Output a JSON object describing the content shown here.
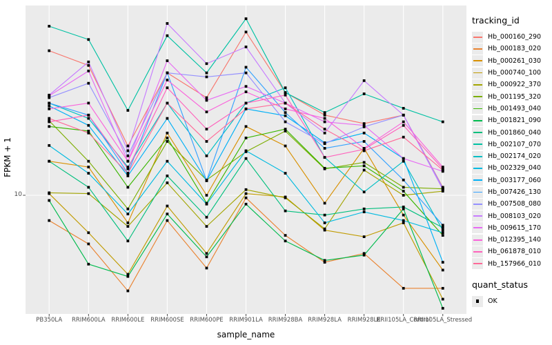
{
  "figure": {
    "background": "#FFFFFF",
    "panel_background": "#EBEBEB",
    "grid_color": "#FFFFFF",
    "axis_text_color": "#4d4d4d",
    "point_color": "#000000"
  },
  "chart_data": {
    "type": "line",
    "title": "",
    "xlabel": "sample_name",
    "ylabel": "FPKM + 1",
    "y_scale": "log10",
    "y_ticks": [
      10
    ],
    "y_tick_labels": [
      "10"
    ],
    "ylim": [
      2.3,
      95
    ],
    "grid": "major-on",
    "legend_position": "right",
    "point_shape": "filled-square",
    "categories": [
      "PB350LA",
      "RRIM600LA",
      "RRIM600LE",
      "RRIM600SE",
      "RRIM600PE",
      "RRIM901LA",
      "RRIM928BA",
      "RRIM928LA",
      "RRIM928LE",
      "RRII105LA_Control",
      "RRII105LA_Stressed"
    ],
    "series": [
      {
        "name": "Hb_000160_290",
        "color": "#F8766D",
        "values": [
          56,
          47,
          18,
          43,
          32,
          70,
          34,
          26,
          23.5,
          26,
          11
        ]
      },
      {
        "name": "Hb_000183_020",
        "color": "#EA8331",
        "values": [
          7.4,
          5.6,
          3.2,
          7.4,
          4.2,
          9.7,
          6.2,
          4.5,
          5.0,
          3.3,
          3.3
        ]
      },
      {
        "name": "Hb_000261_030",
        "color": "#D89000",
        "values": [
          15,
          14,
          7.2,
          21,
          10,
          22.7,
          18,
          9.1,
          17.5,
          7.9,
          4.1
        ]
      },
      {
        "name": "Hb_000740_100",
        "color": "#C09B00",
        "values": [
          10.2,
          6.4,
          3.9,
          8.8,
          5.0,
          10.2,
          9.8,
          6.6,
          6.1,
          7.2,
          2.9
        ]
      },
      {
        "name": "Hb_000922_370",
        "color": "#A3A500",
        "values": [
          10.3,
          10.2,
          6.9,
          11.6,
          6.9,
          10.7,
          9.7,
          6.7,
          13.5,
          10.0,
          10.5
        ]
      },
      {
        "name": "Hb_001195_320",
        "color": "#7CAE00",
        "values": [
          24.3,
          15,
          8.5,
          19,
          12,
          16.8,
          21.5,
          13.7,
          14.8,
          11.0,
          10.8
        ]
      },
      {
        "name": "Hb_001493_040",
        "color": "#39B600",
        "values": [
          22.7,
          21.5,
          11,
          19.8,
          9.1,
          19.8,
          22,
          13.8,
          14.2,
          10.5,
          6.2
        ]
      },
      {
        "name": "Hb_001821_090",
        "color": "#00BB4E",
        "values": [
          9.4,
          4.4,
          3.8,
          8.0,
          4.8,
          9.0,
          5.8,
          4.6,
          4.9,
          8.5,
          2.6
        ]
      },
      {
        "name": "Hb_001860_040",
        "color": "#00BF7D",
        "values": [
          15,
          11,
          5.8,
          12.6,
          7.7,
          15.5,
          8.3,
          7.9,
          8.5,
          8.7,
          6.8
        ]
      },
      {
        "name": "Hb_002107_070",
        "color": "#00C1A3",
        "values": [
          75,
          64,
          27.5,
          67,
          43,
          82,
          34,
          26.8,
          33.5,
          28.2,
          24
        ]
      },
      {
        "name": "Hb_002174_020",
        "color": "#00BFC4",
        "values": [
          30,
          25,
          14,
          30,
          16,
          30,
          36,
          15.7,
          10.4,
          15,
          6.6
        ]
      },
      {
        "name": "Hb_002329_040",
        "color": "#00BAE0",
        "values": [
          18.1,
          13,
          8.0,
          15,
          9.0,
          17,
          13,
          7.2,
          8.2,
          7.4,
          6.4
        ]
      },
      {
        "name": "Hb_003177_060",
        "color": "#00B0F6",
        "values": [
          29,
          23,
          12.6,
          25,
          11.9,
          28,
          25.8,
          18.7,
          21,
          15.5,
          4.5
        ]
      },
      {
        "name": "Hb_007426_130",
        "color": "#35A2FF",
        "values": [
          30,
          26,
          13,
          43,
          11.9,
          46,
          26.8,
          17.5,
          19,
          12,
          7.0
        ]
      },
      {
        "name": "Hb_007508_080",
        "color": "#9590FF",
        "values": [
          32,
          38,
          16,
          43,
          41,
          43,
          24,
          18.5,
          22.6,
          26,
          10.9
        ]
      },
      {
        "name": "Hb_008103_020",
        "color": "#C77CFF",
        "values": [
          33,
          49,
          17,
          77.5,
          48,
          58.6,
          30,
          21,
          39.2,
          26,
          10.7
        ]
      },
      {
        "name": "Hb_009615_170",
        "color": "#E76BF3",
        "values": [
          32.7,
          44,
          15,
          49.7,
          31,
          36.6,
          30,
          24,
          23,
          15.5,
          13.3
        ]
      },
      {
        "name": "Hb_012395_140",
        "color": "#FA62DB",
        "values": [
          28,
          30,
          15,
          39.5,
          27,
          34.3,
          28,
          25,
          17.5,
          24,
          14
        ]
      },
      {
        "name": "Hb_061878_010",
        "color": "#FF62BC",
        "values": [
          24,
          26,
          13.7,
          36,
          22,
          30,
          33,
          15.7,
          17.3,
          23,
          13.7
        ]
      },
      {
        "name": "Hb_157966_010",
        "color": "#FF6A98",
        "values": [
          25,
          21,
          13,
          30,
          19,
          28,
          30,
          22,
          17,
          20,
          13.5
        ]
      }
    ]
  },
  "legend": {
    "tracking_title": "tracking_id",
    "quant_title": "quant_status",
    "quant_items": [
      {
        "label": "OK",
        "symbol": "filled-square"
      }
    ]
  }
}
